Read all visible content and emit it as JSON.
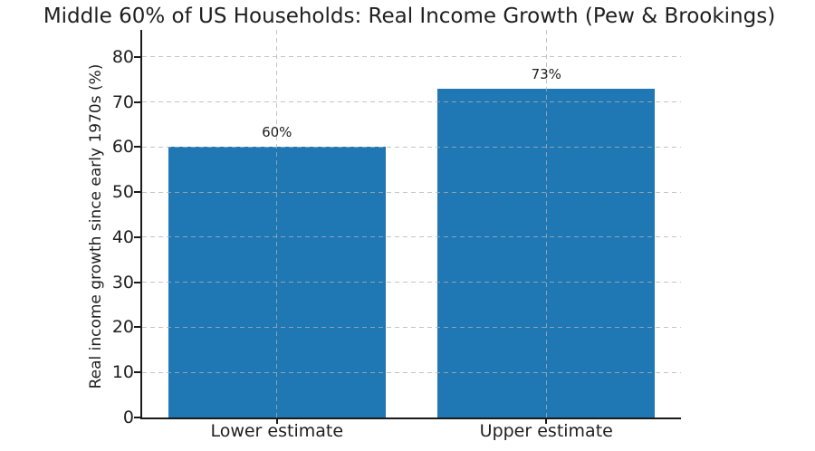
{
  "chart_data": {
    "type": "bar",
    "title": "Middle 60% of US Households: Real Income Growth (Pew & Brookings)",
    "categories": [
      "Lower estimate",
      "Upper estimate"
    ],
    "values": [
      60,
      73
    ],
    "bar_value_labels": [
      "60%",
      "73%"
    ],
    "xlabel": "",
    "ylabel": "Real income growth since early 1970s (%)",
    "ylim": [
      0,
      86
    ],
    "yticks": [
      0,
      10,
      20,
      30,
      40,
      50,
      60,
      70,
      80
    ],
    "grid": true,
    "grid_style": "dashed",
    "legend": null,
    "colors": {
      "bar": "#1f77b4",
      "grid": "#b0b0b0",
      "axis": "#1a1a1a",
      "text": "#1f1f1f",
      "background": "#ffffff"
    }
  }
}
